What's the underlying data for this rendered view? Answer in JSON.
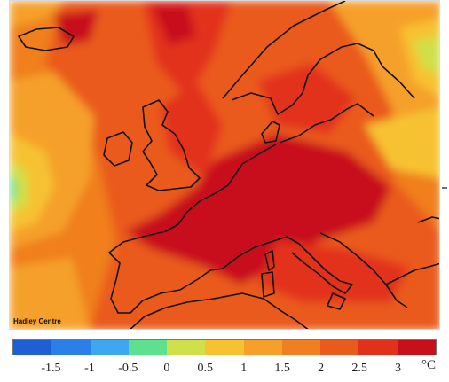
{
  "map": {
    "credit": "Hadley Centre"
  },
  "legend": {
    "colors": [
      "#1f5fd6",
      "#2b7fe8",
      "#3fa7f0",
      "#5ee08f",
      "#cfe04a",
      "#f6c230",
      "#f5a02a",
      "#f07f1f",
      "#ea5a1a",
      "#e2311a",
      "#c8101a"
    ],
    "ticks": [
      "-1.5",
      "-1",
      "-0.5",
      "0",
      "0.5",
      "1",
      "1.5",
      "2",
      "2.5",
      "3"
    ],
    "unit": "°C"
  }
}
